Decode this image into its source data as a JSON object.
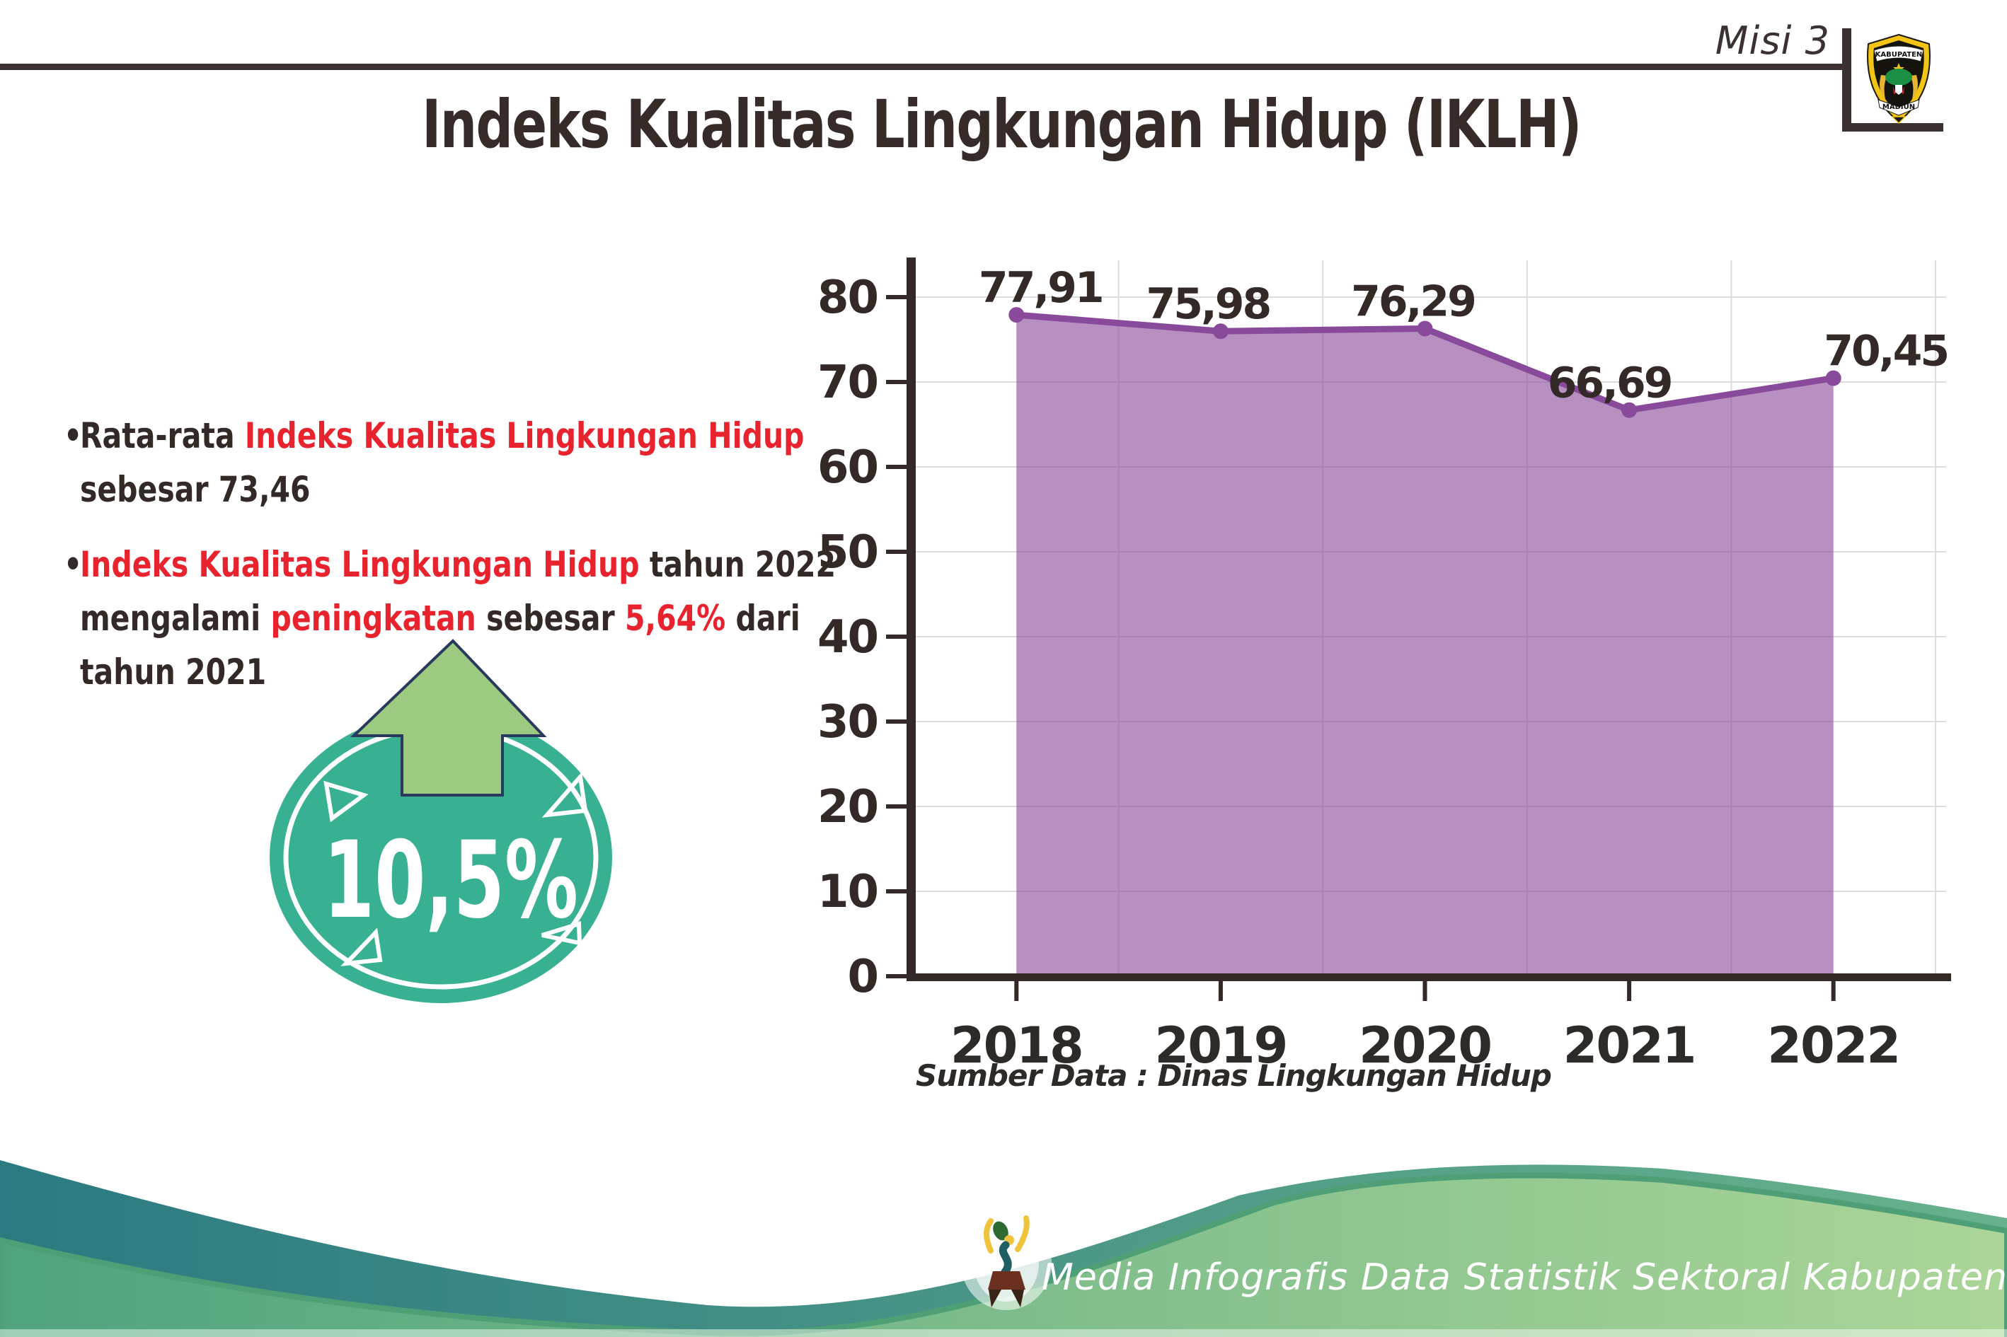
{
  "header": {
    "misi_label": "Misi 3",
    "title": "Indeks Kualitas Lingkungan Hidup (IKLH)"
  },
  "logo": {
    "top_text": "KABUPATEN",
    "bottom_text": "MADIUN"
  },
  "bullets": [
    {
      "segments": [
        {
          "text": "Rata-rata ",
          "color": "dark"
        },
        {
          "text": "Indeks Kualitas Lingkungan Hidup",
          "color": "red"
        },
        {
          "break": true
        },
        {
          "text": "sebesar 73,46",
          "color": "dark"
        }
      ]
    },
    {
      "segments": [
        {
          "text": "Indeks Kualitas Lingkungan Hidup",
          "color": "red"
        },
        {
          "text": " tahun 2022",
          "color": "dark"
        },
        {
          "break": true
        },
        {
          "text": "mengalami ",
          "color": "dark"
        },
        {
          "text": "peningkatan",
          "color": "red"
        },
        {
          "text": " sebesar ",
          "color": "dark"
        },
        {
          "text": "5,64%",
          "color": "red"
        },
        {
          "text": " dari",
          "color": "dark"
        },
        {
          "break": true
        },
        {
          "text": "tahun 2021",
          "color": "dark"
        }
      ]
    }
  ],
  "badge": {
    "value": "10,5%"
  },
  "chart_data": {
    "type": "area",
    "categories": [
      "2018",
      "2019",
      "2020",
      "2021",
      "2022"
    ],
    "values": [
      77.91,
      75.98,
      76.29,
      66.69,
      70.45
    ],
    "point_labels": [
      "77,91",
      "75,98",
      "76,29",
      "66,69",
      "70,45"
    ],
    "yticks": [
      0,
      10,
      20,
      30,
      40,
      50,
      60,
      70,
      80
    ],
    "ylim": [
      0,
      85
    ],
    "grid": true,
    "legend": false,
    "title": "",
    "xlabel": "",
    "ylabel": ""
  },
  "source_note": "Sumber Data : Dinas Lingkungan Hidup",
  "footer": {
    "credit": "Media Infografis Data Statistik Sektoral Kabupaten Madiun |"
  },
  "colors": {
    "text_dark": "#332a27",
    "accent_red": "#e8232e",
    "chart_line": "#8a4a9b",
    "chart_fill": "rgba(138,74,155,0.62)",
    "grid_gray": "#dcdcdc",
    "badge_teal": "#38b192",
    "arrow_green": "#9cca80",
    "arrow_outline": "#2a3a5e",
    "wave_teal_start": "#2b7a81",
    "wave_teal_end": "#68b18c",
    "wave_green_start": "#4fa47e",
    "wave_green_end": "#abd598",
    "logo_yellow": "#f2c413"
  }
}
